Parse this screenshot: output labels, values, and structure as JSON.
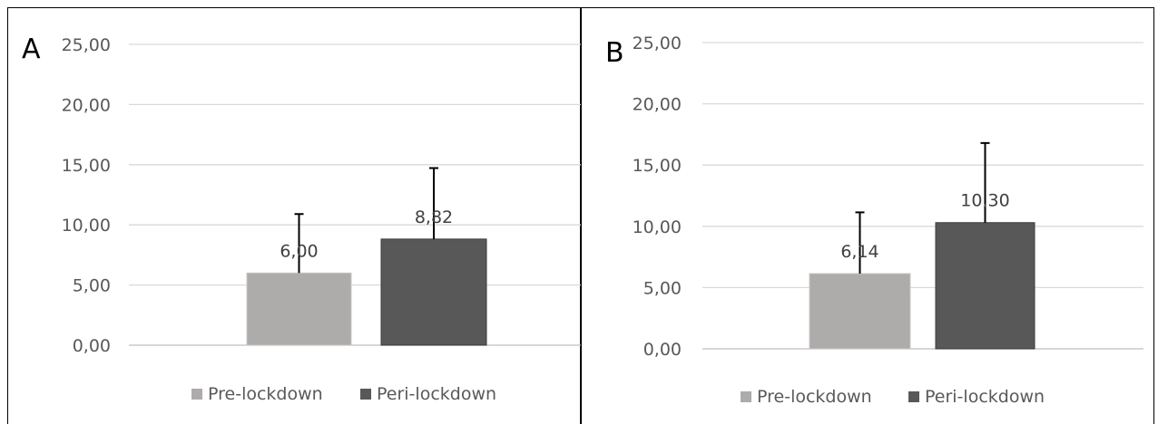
{
  "colors": {
    "pre": "#aeabab",
    "peri": "#585858",
    "grid": "#d9d9d9",
    "axis": "#bfbfbf",
    "text": "#595959",
    "border": "#000000"
  },
  "chart_data": [
    {
      "type": "bar",
      "panel_label": "A",
      "series": [
        {
          "name": "Pre-lockdown",
          "value": 6.0,
          "label": "6,00",
          "error": 4.9
        },
        {
          "name": "Peri-lockdown",
          "value": 8.82,
          "label": "8,82",
          "error": 5.9
        }
      ],
      "ylim": [
        0,
        25
      ],
      "yticks": [
        "0,00",
        "5,00",
        "10,00",
        "15,00",
        "20,00",
        "25,00"
      ],
      "ytick_values": [
        0,
        5,
        10,
        15,
        20,
        25
      ],
      "grid": true,
      "legend": "bottom"
    },
    {
      "type": "bar",
      "panel_label": "B",
      "series": [
        {
          "name": "Pre-lockdown",
          "value": 6.14,
          "label": "6,14",
          "error": 5.0
        },
        {
          "name": "Peri-lockdown",
          "value": 10.3,
          "label": "10,30",
          "error": 6.5
        }
      ],
      "ylim": [
        0,
        25
      ],
      "yticks": [
        "0,00",
        "5,00",
        "10,00",
        "15,00",
        "20,00",
        "25,00"
      ],
      "ytick_values": [
        0,
        5,
        10,
        15,
        20,
        25
      ],
      "grid": true,
      "legend": "bottom"
    }
  ]
}
